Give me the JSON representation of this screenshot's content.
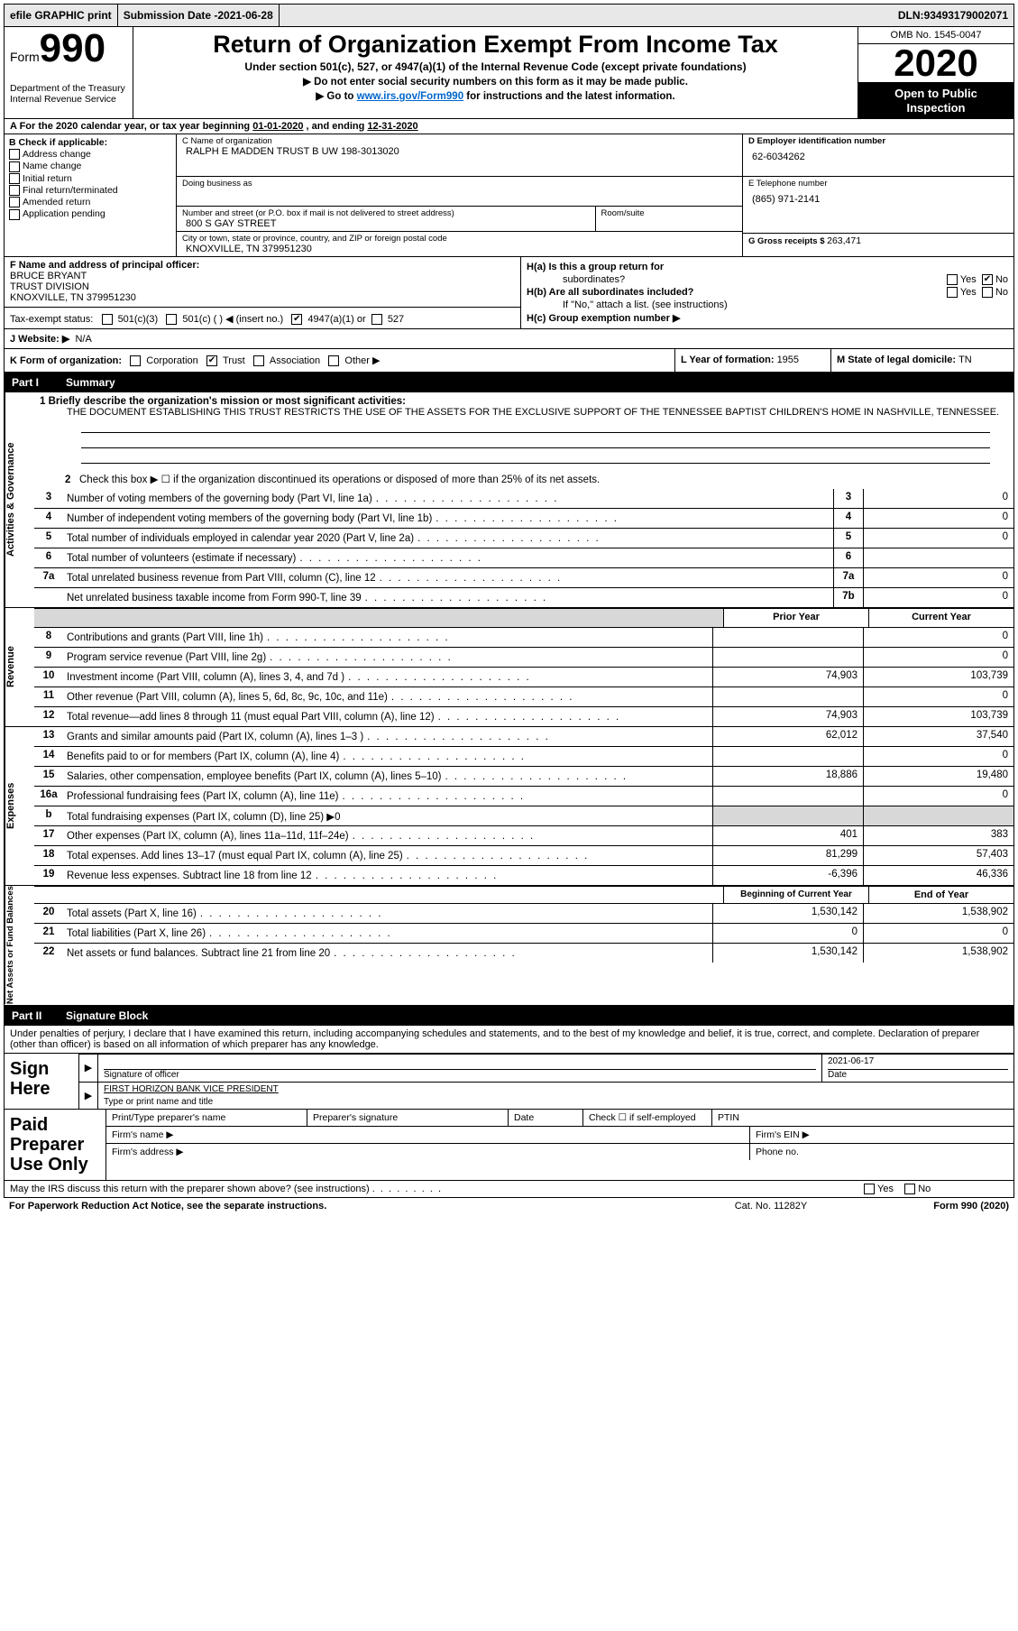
{
  "topbar": {
    "efile": "efile GRAPHIC print",
    "submission_label": "Submission Date - ",
    "submission_date": "2021-06-28",
    "dln_label": "DLN: ",
    "dln": "93493179002071"
  },
  "header": {
    "form_word": "Form",
    "form_num": "990",
    "title": "Return of Organization Exempt From Income Tax",
    "subtitle": "Under section 501(c), 527, or 4947(a)(1) of the Internal Revenue Code (except private foundations)",
    "line1": "▶ Do not enter social security numbers on this form as it may be made public.",
    "line2_pre": "▶ Go to ",
    "line2_link": "www.irs.gov/Form990",
    "line2_post": " for instructions and the latest information.",
    "omb": "OMB No. 1545-0047",
    "year": "2020",
    "open_inspect1": "Open to Public",
    "open_inspect2": "Inspection",
    "dept1": "Department of the Treasury",
    "dept2": "Internal Revenue Service"
  },
  "rowA": {
    "pre": "A For the 2020 calendar year, or tax year beginning ",
    "begin": "01-01-2020",
    "mid": " , and ending ",
    "end": "12-31-2020"
  },
  "B": {
    "label": "B Check if applicable:",
    "items": [
      "Address change",
      "Name change",
      "Initial return",
      "Final return/terminated",
      "Amended return",
      "Application pending"
    ]
  },
  "C": {
    "name_label": "C Name of organization",
    "name": "RALPH E MADDEN TRUST B UW 198-3013020",
    "dba_label": "Doing business as",
    "dba": "",
    "addr_label": "Number and street (or P.O. box if mail is not delivered to street address)",
    "room_label": "Room/suite",
    "addr": "800 S GAY STREET",
    "city_label": "City or town, state or province, country, and ZIP or foreign postal code",
    "city": "KNOXVILLE, TN  379951230"
  },
  "D": {
    "label": "D Employer identification number",
    "value": "62-6034262"
  },
  "E": {
    "label": "E Telephone number",
    "value": "(865) 971-2141"
  },
  "G": {
    "label": "G Gross receipts $ ",
    "value": "263,471"
  },
  "F": {
    "label": "F  Name and address of principal officer:",
    "l1": "BRUCE BRYANT",
    "l2": "TRUST DIVISION",
    "l3": "KNOXVILLE, TN  379951230"
  },
  "H": {
    "a_label": "H(a)  Is this a group return for",
    "a_sub": "subordinates?",
    "b_label": "H(b)  Are all subordinates included?",
    "b_note": "If \"No,\" attach a list. (see instructions)",
    "c_label": "H(c)  Group exemption number ▶",
    "yes": "Yes",
    "no": "No"
  },
  "I": {
    "label": "Tax-exempt status:",
    "opt1": "501(c)(3)",
    "opt2": "501(c) (   ) ◀ (insert no.)",
    "opt3": "4947(a)(1) or",
    "opt4": "527"
  },
  "J": {
    "label": "J   Website: ▶",
    "value": "N/A"
  },
  "K": {
    "label": "K Form of organization:",
    "corp": "Corporation",
    "trust": "Trust",
    "assoc": "Association",
    "other": "Other ▶"
  },
  "L": {
    "label": "L Year of formation: ",
    "value": "1955"
  },
  "M": {
    "label": "M State of legal domicile: ",
    "value": "TN"
  },
  "part1": {
    "part": "Part I",
    "title": "Summary"
  },
  "summary": {
    "side_labels": [
      "Activities & Governance",
      "Revenue",
      "Expenses",
      "Net Assets or Fund Balances"
    ],
    "q1_label": "1   Briefly describe the organization's mission or most significant activities:",
    "q1_text": "THE DOCUMENT ESTABLISHING THIS TRUST RESTRICTS THE USE OF THE ASSETS FOR THE EXCLUSIVE SUPPORT OF THE TENNESSEE BAPTIST CHILDREN'S HOME IN NASHVILLE, TENNESSEE.",
    "q2_label": "Check this box ▶ ☐  if the organization discontinued its operations or disposed of more than 25% of its net assets.",
    "prior_hdr": "Prior Year",
    "current_hdr": "Current Year",
    "boc_hdr": "Beginning of Current Year",
    "eoy_hdr": "End of Year",
    "lines_gov_3_7": [
      {
        "n": "3",
        "desc": "Number of voting members of the governing body (Part VI, line 1a)",
        "box": "3",
        "val": "0"
      },
      {
        "n": "4",
        "desc": "Number of independent voting members of the governing body (Part VI, line 1b)",
        "box": "4",
        "val": "0"
      },
      {
        "n": "5",
        "desc": "Total number of individuals employed in calendar year 2020 (Part V, line 2a)",
        "box": "5",
        "val": "0"
      },
      {
        "n": "6",
        "desc": "Total number of volunteers (estimate if necessary)",
        "box": "6",
        "val": ""
      },
      {
        "n": "7a",
        "desc": "Total unrelated business revenue from Part VIII, column (C), line 12",
        "box": "7a",
        "val": "0"
      },
      {
        "n": "",
        "desc": "Net unrelated business taxable income from Form 990-T, line 39",
        "box": "7b",
        "val": "0"
      }
    ],
    "lines_rev": [
      {
        "n": "8",
        "desc": "Contributions and grants (Part VIII, line 1h)",
        "py": "",
        "cy": "0"
      },
      {
        "n": "9",
        "desc": "Program service revenue (Part VIII, line 2g)",
        "py": "",
        "cy": "0"
      },
      {
        "n": "10",
        "desc": "Investment income (Part VIII, column (A), lines 3, 4, and 7d )",
        "py": "74,903",
        "cy": "103,739"
      },
      {
        "n": "11",
        "desc": "Other revenue (Part VIII, column (A), lines 5, 6d, 8c, 9c, 10c, and 11e)",
        "py": "",
        "cy": "0"
      },
      {
        "n": "12",
        "desc": "Total revenue—add lines 8 through 11 (must equal Part VIII, column (A), line 12)",
        "py": "74,903",
        "cy": "103,739"
      }
    ],
    "lines_exp": [
      {
        "n": "13",
        "desc": "Grants and similar amounts paid (Part IX, column (A), lines 1–3 )",
        "py": "62,012",
        "cy": "37,540"
      },
      {
        "n": "14",
        "desc": "Benefits paid to or for members (Part IX, column (A), line 4)",
        "py": "",
        "cy": "0"
      },
      {
        "n": "15",
        "desc": "Salaries, other compensation, employee benefits (Part IX, column (A), lines 5–10)",
        "py": "18,886",
        "cy": "19,480"
      },
      {
        "n": "16a",
        "desc": "Professional fundraising fees (Part IX, column (A), line 11e)",
        "py": "",
        "cy": "0"
      },
      {
        "n": "b",
        "desc": "Total fundraising expenses (Part IX, column (D), line 25) ▶0",
        "shade": true
      },
      {
        "n": "17",
        "desc": "Other expenses (Part IX, column (A), lines 11a–11d, 11f–24e)",
        "py": "401",
        "cy": "383"
      },
      {
        "n": "18",
        "desc": "Total expenses. Add lines 13–17 (must equal Part IX, column (A), line 25)",
        "py": "81,299",
        "cy": "57,403"
      },
      {
        "n": "19",
        "desc": "Revenue less expenses. Subtract line 18 from line 12",
        "py": "-6,396",
        "cy": "46,336"
      }
    ],
    "lines_net": [
      {
        "n": "20",
        "desc": "Total assets (Part X, line 16)",
        "py": "1,530,142",
        "cy": "1,538,902"
      },
      {
        "n": "21",
        "desc": "Total liabilities (Part X, line 26)",
        "py": "0",
        "cy": "0"
      },
      {
        "n": "22",
        "desc": "Net assets or fund balances. Subtract line 21 from line 20",
        "py": "1,530,142",
        "cy": "1,538,902"
      }
    ]
  },
  "part2": {
    "part": "Part II",
    "title": "Signature Block"
  },
  "sig": {
    "intro": "Under penalties of perjury, I declare that I have examined this return, including accompanying schedules and statements, and to the best of my knowledge and belief, it is true, correct, and complete. Declaration of preparer (other than officer) is based on all information of which preparer has any knowledge.",
    "sign_here": "Sign Here",
    "sig_officer": "Signature of officer",
    "date": "Date",
    "date_val": "2021-06-17",
    "name_title_val": "FIRST HORIZON BANK  VICE PRESIDENT",
    "name_title_label": "Type or print name and title"
  },
  "paid": {
    "title": "Paid Preparer Use Only",
    "h1": "Print/Type preparer's name",
    "h2": "Preparer's signature",
    "h3": "Date",
    "h4": "Check ☐  if self-employed",
    "h5": "PTIN",
    "firm_name": "Firm's name     ▶",
    "firm_ein": "Firm's EIN ▶",
    "firm_addr": "Firm's address ▶",
    "phone": "Phone no."
  },
  "footer": {
    "discuss_pre": "May the IRS discuss this return with the preparer shown above? (see instructions)",
    "yes": "Yes",
    "no": "No",
    "paperwork": "For Paperwork Reduction Act Notice, see the separate instructions.",
    "cat": "Cat. No. 11282Y",
    "form": "Form 990 (2020)"
  }
}
